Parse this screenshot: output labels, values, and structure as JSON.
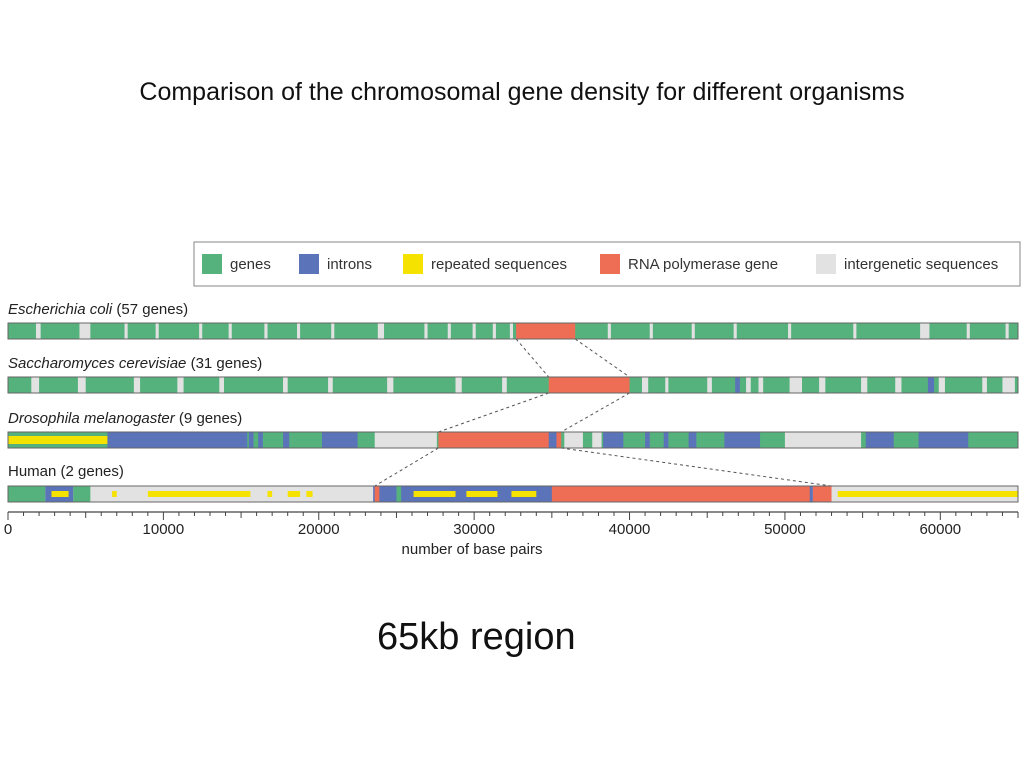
{
  "slide": {
    "title": "Comparison of the chromosomal gene density for different organisms",
    "subtitle": "65kb region"
  },
  "legend": [
    {
      "label": "genes",
      "color": "#56b27c"
    },
    {
      "label": "introns",
      "color": "#5b73b8"
    },
    {
      "label": "repeated sequences",
      "color": "#f6e200"
    },
    {
      "label": "RNA polymerase gene",
      "color": "#ee6d55"
    },
    {
      "label": "intergenetic sequences",
      "color": "#e2e2e2"
    }
  ],
  "chart_data": {
    "type": "genomic-track",
    "xlabel": "number of base pairs",
    "xlim": [
      0,
      65000
    ],
    "ticks": [
      0,
      10000,
      20000,
      30000,
      40000,
      50000,
      60000
    ],
    "tracks": [
      {
        "name_italic": "Escherichia coli",
        "name_rest": " (57 genes)",
        "base": "genes",
        "segments": [
          [
            "intergenic",
            1800,
            2100
          ],
          [
            "intergenic",
            4600,
            5300
          ],
          [
            "intergenic",
            7500,
            7700
          ],
          [
            "intergenic",
            9500,
            9700
          ],
          [
            "intergenic",
            12300,
            12500
          ],
          [
            "intergenic",
            14200,
            14400
          ],
          [
            "intergenic",
            16500,
            16700
          ],
          [
            "intergenic",
            18600,
            18800
          ],
          [
            "intergenic",
            20800,
            21000
          ],
          [
            "intergenic",
            23800,
            24200
          ],
          [
            "intergenic",
            26800,
            27000
          ],
          [
            "intergenic",
            28300,
            28500
          ],
          [
            "intergenic",
            29900,
            30100
          ],
          [
            "intergenic",
            31200,
            31400
          ],
          [
            "intergenic",
            32300,
            32500
          ],
          [
            "rna",
            32700,
            36500
          ],
          [
            "intergenic",
            38600,
            38800
          ],
          [
            "intergenic",
            41300,
            41500
          ],
          [
            "intergenic",
            44000,
            44200
          ],
          [
            "intergenic",
            46700,
            46900
          ],
          [
            "intergenic",
            50200,
            50400
          ],
          [
            "intergenic",
            54400,
            54600
          ],
          [
            "intergenic",
            58700,
            59300
          ],
          [
            "intergenic",
            61700,
            61900
          ],
          [
            "intergenic",
            64200,
            64400
          ]
        ]
      },
      {
        "name_italic": "Saccharomyces cerevisiae",
        "name_rest": " (31 genes)",
        "base": "genes",
        "segments": [
          [
            "intergenic",
            1500,
            2000
          ],
          [
            "intergenic",
            4500,
            5000
          ],
          [
            "intergenic",
            8100,
            8500
          ],
          [
            "intergenic",
            10900,
            11300
          ],
          [
            "intergenic",
            13600,
            13900
          ],
          [
            "intergenic",
            17700,
            18000
          ],
          [
            "intergenic",
            20600,
            20900
          ],
          [
            "intergenic",
            24400,
            24800
          ],
          [
            "intergenic",
            28800,
            29200
          ],
          [
            "intergenic",
            31800,
            32100
          ],
          [
            "rna",
            34800,
            40000
          ],
          [
            "intergenic",
            40800,
            41200
          ],
          [
            "intergenic",
            42300,
            42500
          ],
          [
            "intergenic",
            45000,
            45300
          ],
          [
            "introns",
            46800,
            47100
          ],
          [
            "intergenic",
            47500,
            47800
          ],
          [
            "intergenic",
            48300,
            48600
          ],
          [
            "intergenic",
            50300,
            51100
          ],
          [
            "intergenic",
            52200,
            52600
          ],
          [
            "intergenic",
            54900,
            55300
          ],
          [
            "intergenic",
            57100,
            57500
          ],
          [
            "introns",
            59200,
            59600
          ],
          [
            "intergenic",
            59900,
            60300
          ],
          [
            "intergenic",
            62700,
            63000
          ],
          [
            "intergenic",
            64000,
            64800
          ]
        ]
      },
      {
        "name_italic": "Drosophila melanogaster",
        "name_rest": " (9 genes)",
        "base": "genes",
        "segments": [
          [
            "repeat",
            0,
            6400
          ],
          [
            "introns",
            6400,
            15400
          ],
          [
            "introns",
            15500,
            15800
          ],
          [
            "introns",
            16100,
            16400
          ],
          [
            "introns",
            17700,
            18100
          ],
          [
            "introns",
            20200,
            22500
          ],
          [
            "intergenic",
            23600,
            27600
          ],
          [
            "rna",
            27700,
            35600
          ],
          [
            "introns",
            34800,
            35300
          ],
          [
            "intergenic",
            35800,
            37000
          ],
          [
            "introns",
            38300,
            39600
          ],
          [
            "intergenic",
            37600,
            38200
          ],
          [
            "introns",
            41000,
            41300
          ],
          [
            "introns",
            42200,
            42500
          ],
          [
            "introns",
            43800,
            44300
          ],
          [
            "introns",
            46100,
            48400
          ],
          [
            "intergenic",
            50000,
            54900
          ],
          [
            "introns",
            55200,
            57000
          ],
          [
            "introns",
            58600,
            61800
          ]
        ]
      },
      {
        "name_italic": "",
        "name_rest": "Human (2 genes)",
        "base": "intergenic",
        "segments": [
          [
            "genes",
            0,
            2400
          ],
          [
            "introns",
            2400,
            4200
          ],
          [
            "repeat",
            2800,
            3900
          ],
          [
            "genes",
            4200,
            5300
          ],
          [
            "repeat",
            6700,
            7000
          ],
          [
            "repeat",
            9000,
            15600
          ],
          [
            "repeat",
            16700,
            17000
          ],
          [
            "repeat",
            18000,
            18800
          ],
          [
            "repeat",
            19200,
            19600
          ],
          [
            "introns",
            23500,
            51800
          ],
          [
            "rna",
            23600,
            23900
          ],
          [
            "genes",
            25000,
            25300
          ],
          [
            "repeat",
            26100,
            28800
          ],
          [
            "repeat",
            29500,
            31500
          ],
          [
            "repeat",
            32400,
            34000
          ],
          [
            "rna",
            35000,
            51600
          ],
          [
            "rna",
            51800,
            53000
          ],
          [
            "repeat",
            53400,
            65000
          ]
        ]
      }
    ]
  }
}
